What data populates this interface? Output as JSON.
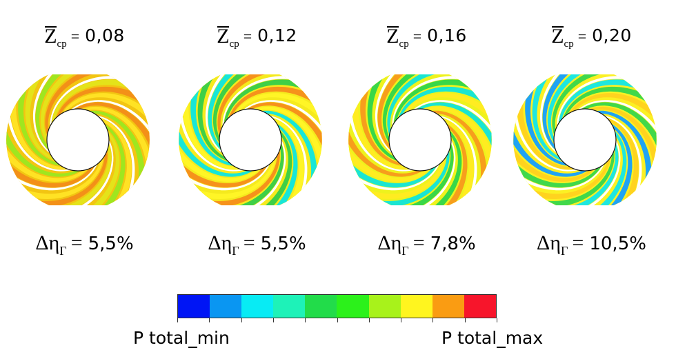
{
  "cases": [
    {
      "z_symbol": "Z",
      "z_sub": "ср",
      "eq": "=",
      "z_value": "0,08",
      "eff_symbol": "Δη",
      "eff_sub": "Г",
      "eff_eq": "=",
      "eff_value": "5,5%",
      "colors": [
        "#f2c512",
        "#e4e31a",
        "#f39018",
        "#ffe224",
        "#9fe61f"
      ]
    },
    {
      "z_symbol": "Z",
      "z_sub": "ср",
      "eq": "=",
      "z_value": "0,12",
      "eff_symbol": "Δη",
      "eff_sub": "Г",
      "eff_eq": "=",
      "eff_value": "5,5%",
      "colors": [
        "#f5ea1e",
        "#3fcf47",
        "#f6921b",
        "#fff526",
        "#18e6d7"
      ]
    },
    {
      "z_symbol": "Z",
      "z_sub": "ср",
      "eq": "=",
      "z_value": "0,16",
      "eff_symbol": "Δη",
      "eff_sub": "Г",
      "eff_eq": "=",
      "eff_value": "7,8%",
      "colors": [
        "#eef21d",
        "#39d748",
        "#1ae5d2",
        "#ffec21",
        "#f79e1c"
      ]
    },
    {
      "z_symbol": "Z",
      "z_sub": "ср",
      "eq": "=",
      "z_value": "0,20",
      "eff_symbol": "Δη",
      "eff_sub": "Г",
      "eff_eq": "=",
      "eff_value": "10,5%",
      "colors": [
        "#fbf024",
        "#1ee7df",
        "#41d84a",
        "#ffd31f",
        "#1fa3f3"
      ]
    }
  ],
  "legend": {
    "min_label": "P total_min",
    "max_label": "P total_max",
    "colors": [
      "#0015f5",
      "#0a96f2",
      "#08ebf4",
      "#1ef2b8",
      "#22dc4a",
      "#2cf11b",
      "#a8f21b",
      "#fff51f",
      "#fa9c12",
      "#f7152b"
    ]
  }
}
